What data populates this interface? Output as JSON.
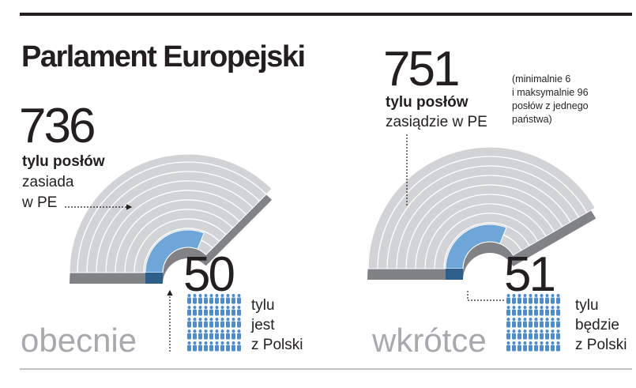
{
  "header": {
    "title": "Parlament Europejski"
  },
  "panels": [
    {
      "total": "736",
      "total_label": "tylu posłów",
      "total_text": [
        "zasiada",
        "w PE"
      ],
      "poland": "50",
      "poland_text": [
        "tylu",
        "jest",
        "z Polski"
      ],
      "period": "obecnie"
    },
    {
      "total": "751",
      "total_label": "tylu posłów",
      "total_text": [
        "zasiądzie w PE"
      ],
      "note": [
        "(minimalnie 6",
        "i maksymalnie 96",
        "posłów z jednego",
        "państwa)"
      ],
      "poland": "51",
      "poland_text": [
        "tylu",
        "będzie",
        "z Polski"
      ],
      "period": "wkrótce"
    }
  ]
}
